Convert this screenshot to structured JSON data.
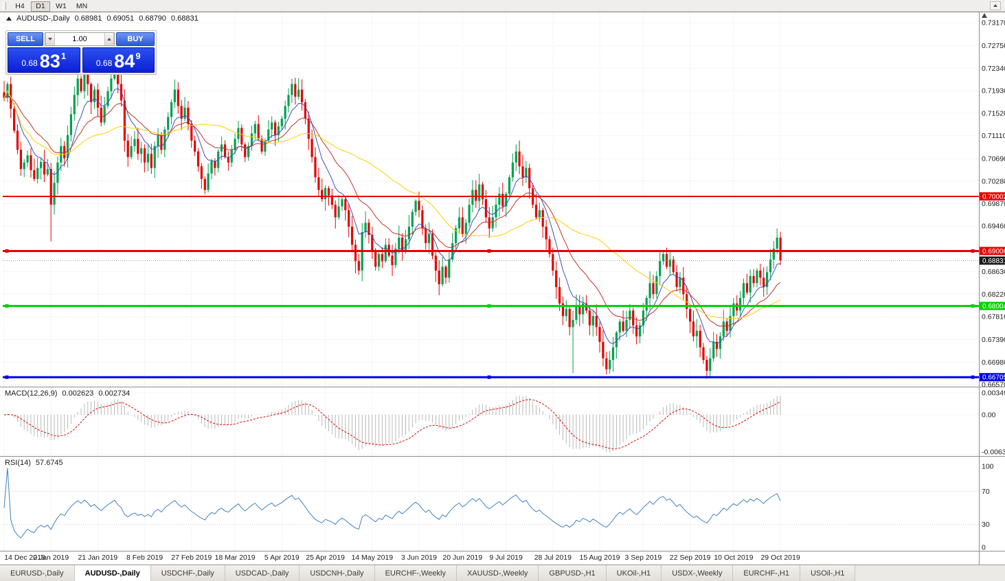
{
  "toolbar": {
    "timeframes": [
      "H4",
      "D1",
      "W1",
      "MN"
    ],
    "active": "D1"
  },
  "chart_header": {
    "symbol": "AUDUSD-,Daily",
    "open": "0.68981",
    "high": "0.69051",
    "low": "0.68790",
    "close": "0.68831"
  },
  "one_click": {
    "sell_label": "SELL",
    "buy_label": "BUY",
    "volume": "1.00",
    "sell_price": {
      "prefix": "0.68",
      "big": "83",
      "sup": "1"
    },
    "buy_price": {
      "prefix": "0.68",
      "big": "84",
      "sup": "9"
    }
  },
  "indicators": {
    "macd": {
      "label": "MACD(12,26,9)",
      "value1": "0.002623",
      "value2": "0.002734",
      "scale": [
        "0.00349",
        "0.00",
        "-0.00637"
      ],
      "hist_color": "#b8b8b8",
      "signal_color": "#e60000"
    },
    "rsi": {
      "label": "RSI(14)",
      "value": "57.6745",
      "scale": [
        "100",
        "70",
        "30",
        "0"
      ],
      "levels": [
        70,
        30
      ],
      "color": "#4080c0"
    }
  },
  "chart_data": {
    "type": "candlestick",
    "symbol": "AUDUSD",
    "period": "Daily",
    "first_open": 0.719,
    "closes": [
      0.718,
      0.7205,
      0.716,
      0.712,
      0.7085,
      0.705,
      0.7062,
      0.7075,
      0.7048,
      0.7032,
      0.7052,
      0.7063,
      0.704,
      0.705,
      0.6985,
      0.7025,
      0.7062,
      0.7092,
      0.707,
      0.7112,
      0.715,
      0.7185,
      0.7215,
      0.7192,
      0.723,
      0.7205,
      0.7172,
      0.7195,
      0.7162,
      0.7135,
      0.7165,
      0.7192,
      0.7215,
      0.7242,
      0.7205,
      0.7175,
      0.7102,
      0.7072,
      0.7092,
      0.7105,
      0.7078,
      0.7088,
      0.7062,
      0.7078,
      0.7052,
      0.7092,
      0.7112,
      0.7085,
      0.7122,
      0.7145,
      0.7172,
      0.7195,
      0.7165,
      0.7142,
      0.7162,
      0.7132,
      0.7102,
      0.7082,
      0.7055,
      0.7032,
      0.7012,
      0.7042,
      0.7065,
      0.7052,
      0.7082,
      0.7095,
      0.7072,
      0.7062,
      0.7085,
      0.7105,
      0.7125,
      0.7095,
      0.7072,
      0.7092,
      0.7115,
      0.7132,
      0.7105,
      0.7082,
      0.7102,
      0.7122,
      0.7135,
      0.7112,
      0.7128,
      0.7142,
      0.7165,
      0.7185,
      0.7205,
      0.7182,
      0.7195,
      0.7172,
      0.7142,
      0.7105,
      0.7072,
      0.7035,
      0.7012,
      0.6995,
      0.7015,
      0.7002,
      0.6985,
      0.6962,
      0.6982,
      0.6995,
      0.6975,
      0.6945,
      0.6912,
      0.6882,
      0.6865,
      0.6935,
      0.6952,
      0.693,
      0.6902,
      0.6872,
      0.6895,
      0.6882,
      0.6912,
      0.6892,
      0.6875,
      0.6905,
      0.6925,
      0.6902,
      0.6922,
      0.6945,
      0.6972,
      0.6992,
      0.6975,
      0.6942,
      0.6915,
      0.6932,
      0.6892,
      0.6865,
      0.684,
      0.6872,
      0.6852,
      0.6885,
      0.6915,
      0.6942,
      0.6962,
      0.6932,
      0.6952,
      0.6985,
      0.7012,
      0.6992,
      0.7022,
      0.6995,
      0.6962,
      0.6942,
      0.6962,
      0.6985,
      0.7005,
      0.6982,
      0.7005,
      0.7035,
      0.7062,
      0.7082,
      0.7055,
      0.7035,
      0.7052,
      0.7015,
      0.6985,
      0.6962,
      0.6975,
      0.6945,
      0.6922,
      0.6895,
      0.6865,
      0.6835,
      0.6805,
      0.6782,
      0.6795,
      0.6762,
      0.6775,
      0.6802,
      0.6785,
      0.6805,
      0.6792,
      0.6765,
      0.6782,
      0.6762,
      0.6735,
      0.6705,
      0.6685,
      0.6702,
      0.6725,
      0.6752,
      0.6772,
      0.6755,
      0.6775,
      0.6792,
      0.6765,
      0.6745,
      0.6765,
      0.6792,
      0.6815,
      0.6842,
      0.6822,
      0.6855,
      0.6882,
      0.6895,
      0.6872,
      0.6885,
      0.6862,
      0.6835,
      0.6852,
      0.6822,
      0.6795,
      0.6772,
      0.6745,
      0.6755,
      0.6725,
      0.6702,
      0.6682,
      0.6705,
      0.6735,
      0.6722,
      0.6745,
      0.6772,
      0.6755,
      0.6782,
      0.6805,
      0.6792,
      0.6815,
      0.6842,
      0.6825,
      0.6855,
      0.6842,
      0.6865,
      0.6852,
      0.6835,
      0.6862,
      0.6885,
      0.6905,
      0.6925,
      0.6883
    ],
    "special_lows": {
      "14": 0.6918,
      "170": 0.6678,
      "210": 0.667
    },
    "x_labels": [
      {
        "text": "14 Dec 2018",
        "i": 0
      },
      {
        "text": "2 Jan 2019",
        "i": 14
      },
      {
        "text": "21 Jan 2019",
        "i": 28
      },
      {
        "text": "8 Feb 2019",
        "i": 42
      },
      {
        "text": "27 Feb 2019",
        "i": 56
      },
      {
        "text": "18 Mar 2019",
        "i": 69
      },
      {
        "text": "5 Apr 2019",
        "i": 83
      },
      {
        "text": "25 Apr 2019",
        "i": 96
      },
      {
        "text": "14 May 2019",
        "i": 110
      },
      {
        "text": "3 Jun 2019",
        "i": 124
      },
      {
        "text": "20 Jun 2019",
        "i": 137
      },
      {
        "text": "9 Jul 2019",
        "i": 150
      },
      {
        "text": "28 Jul 2019",
        "i": 164
      },
      {
        "text": "15 Aug 2019",
        "i": 178
      },
      {
        "text": "3 Sep 2019",
        "i": 191
      },
      {
        "text": "22 Sep 2019",
        "i": 205
      },
      {
        "text": "10 Oct 2019",
        "i": 218
      },
      {
        "text": "29 Oct 2019",
        "i": 232
      }
    ],
    "y_ticks": [
      "0.73170",
      "0.72750",
      "0.72340",
      "0.71930",
      "0.71520",
      "0.71110",
      "0.70690",
      "0.70280",
      "0.69870",
      "0.69460",
      "0.68630",
      "0.68220",
      "0.67810",
      "0.67390",
      "0.66980",
      "0.66570"
    ],
    "y_axis": {
      "top_price": 0.7317,
      "bottom_price": 0.6657
    },
    "hlines": [
      {
        "price": 0.70002,
        "label": "0.70002",
        "color": "#e60000",
        "width": 2,
        "handles": false
      },
      {
        "price": 0.69006,
        "label": "0.69006",
        "color": "#e60000",
        "width": 3,
        "handles": true
      },
      {
        "price": 0.68004,
        "label": "0.68004",
        "color": "#00d200",
        "width": 3,
        "handles": true
      },
      {
        "price": 0.66705,
        "label": "0.66705",
        "color": "#0000e6",
        "width": 3,
        "handles": true
      }
    ],
    "current_price": {
      "value": 0.68831,
      "label": "0.68831",
      "badge_color": "#1a1a1a"
    },
    "candle_colors": {
      "up": "#00a050",
      "down": "#e60000"
    },
    "overlays": [
      {
        "name": "ma-fast",
        "type": "ema",
        "period": 8,
        "color": "#3c50be"
      },
      {
        "name": "ma-mid",
        "type": "ema",
        "period": 20,
        "color": "#c03028"
      },
      {
        "name": "ma-slow",
        "type": "sma",
        "period": 45,
        "color": "#ffcf00"
      }
    ],
    "macd_params": {
      "fast": 12,
      "slow": 26,
      "signal": 9
    },
    "rsi_params": {
      "period": 14
    }
  },
  "tabs": {
    "items": [
      "EURUSD-,Daily",
      "AUDUSD-,Daily",
      "USDCHF-,Daily",
      "USDCAD-,Daily",
      "USDCNH-,Daily",
      "EURCHF-,Weekly",
      "XAUUSD-,Weekly",
      "GBPUSD-,H1",
      "UKOil-,H1",
      "USDX-,Weekly",
      "EURCHF-,H1",
      "USOil-,H1"
    ],
    "active": "AUDUSD-,Daily"
  }
}
